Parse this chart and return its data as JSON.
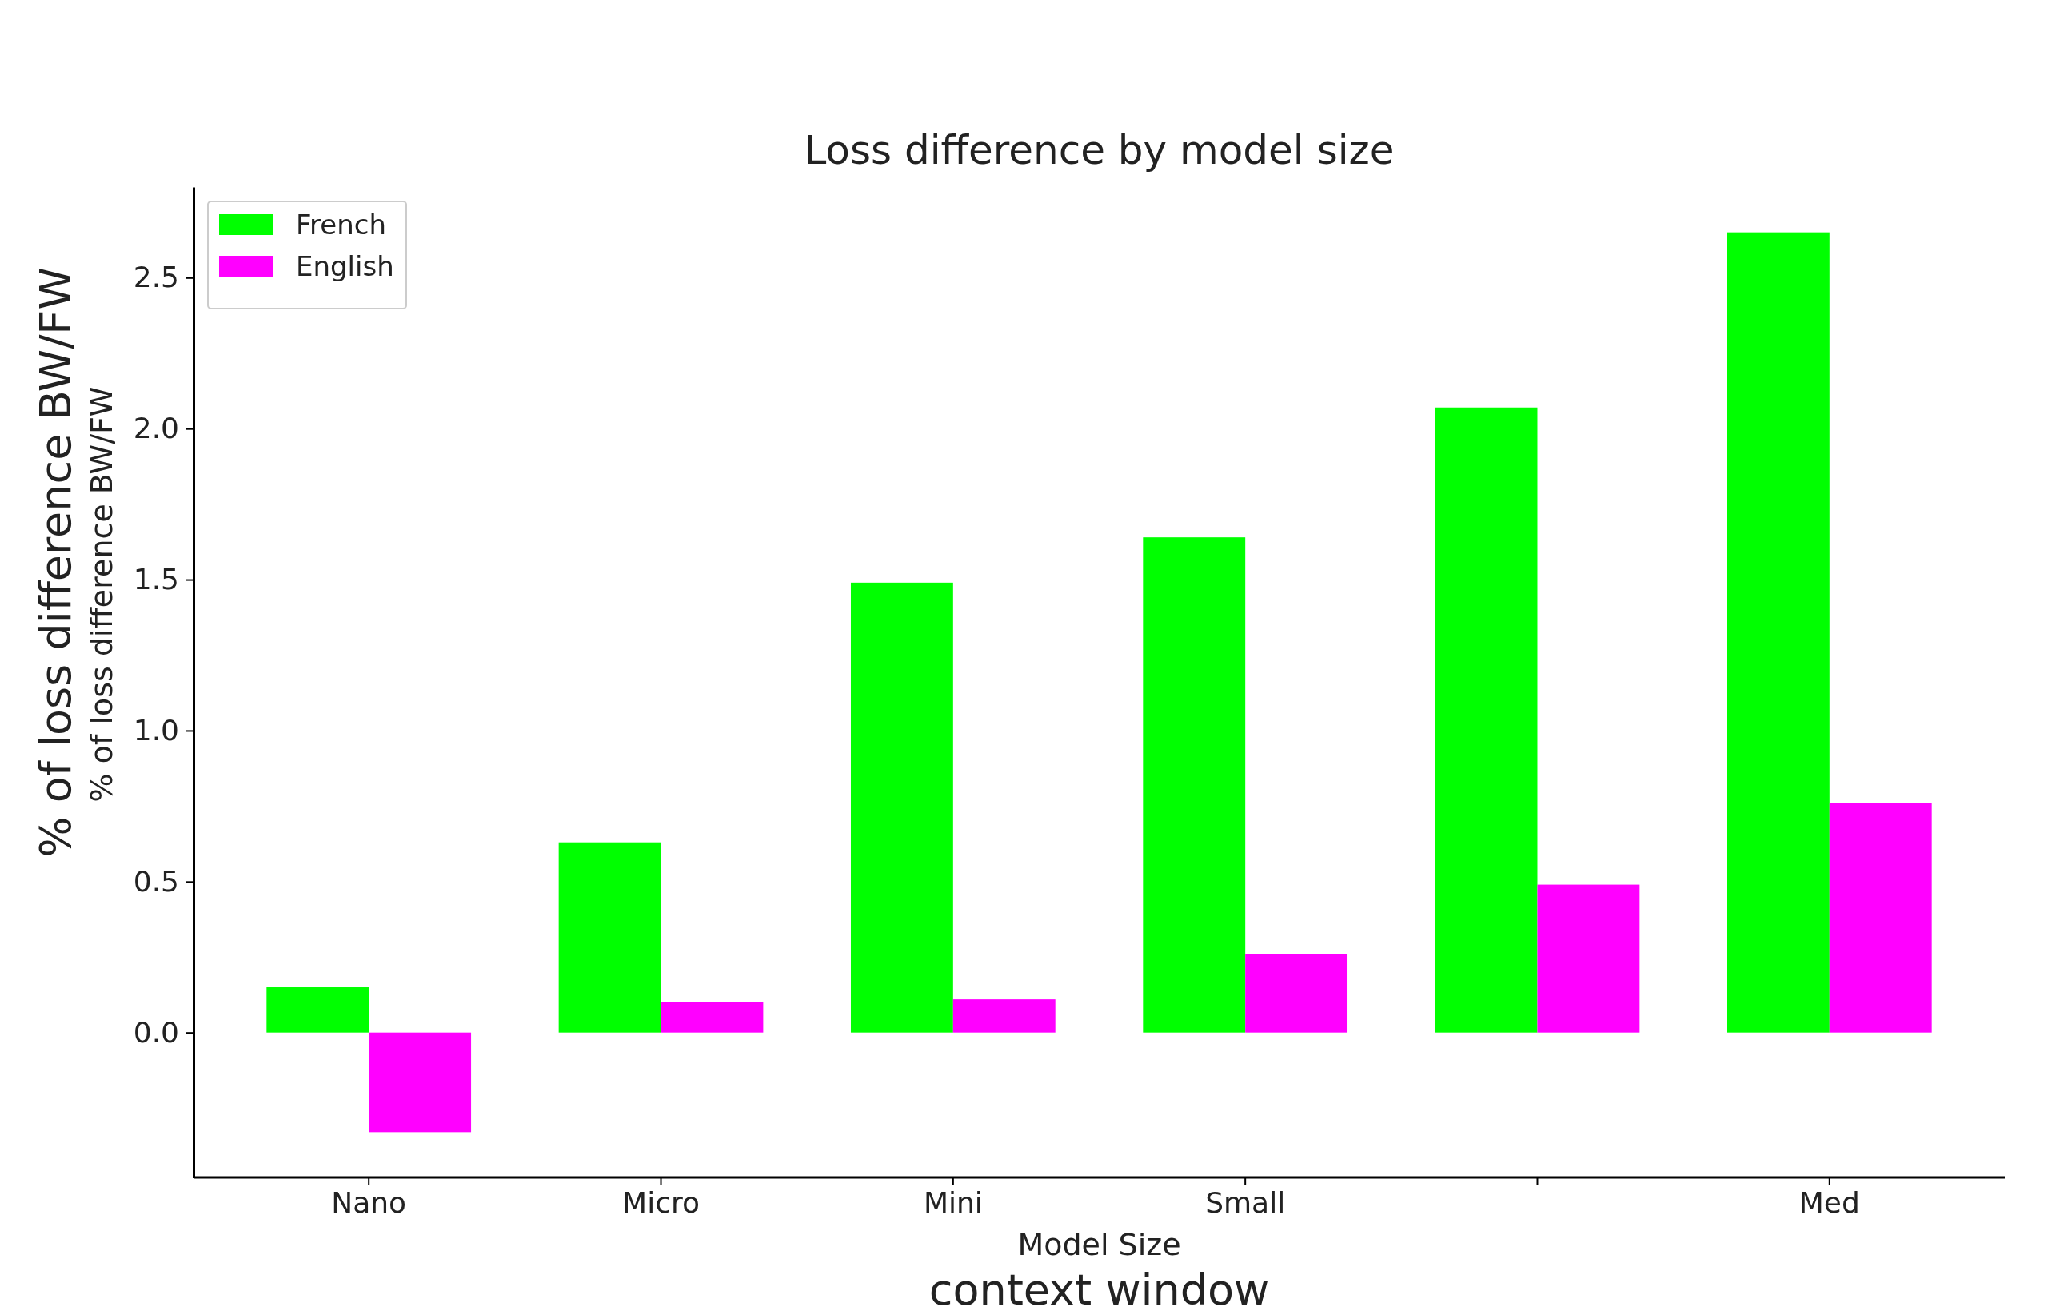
{
  "chart_data": {
    "type": "bar",
    "title": "Loss difference by model size",
    "xlabel": "Model Size",
    "ylabel": "% of loss difference BW/FW",
    "categories": [
      "Nano",
      "Micro",
      "Mini",
      "Small",
      null,
      "Med"
    ],
    "series": [
      {
        "name": "French",
        "color": "#00ff00",
        "values": [
          0.15,
          0.63,
          1.49,
          1.64,
          2.07,
          2.65
        ]
      },
      {
        "name": "English",
        "color": "#ff00ff",
        "values": [
          -0.33,
          0.1,
          0.11,
          0.26,
          0.49,
          0.76
        ]
      }
    ],
    "ylim": [
      -0.48,
      2.8
    ],
    "yticks": [
      {
        "value": 0,
        "label": "0.0"
      },
      0.5,
      {
        "value": 1,
        "label": "1.0"
      },
      1.5,
      {
        "value": 2,
        "label": "2.0"
      },
      2.5
    ],
    "grid": false,
    "legend": "top left",
    "annotations": [
      "% of loss difference BW/FW",
      "context window"
    ]
  }
}
